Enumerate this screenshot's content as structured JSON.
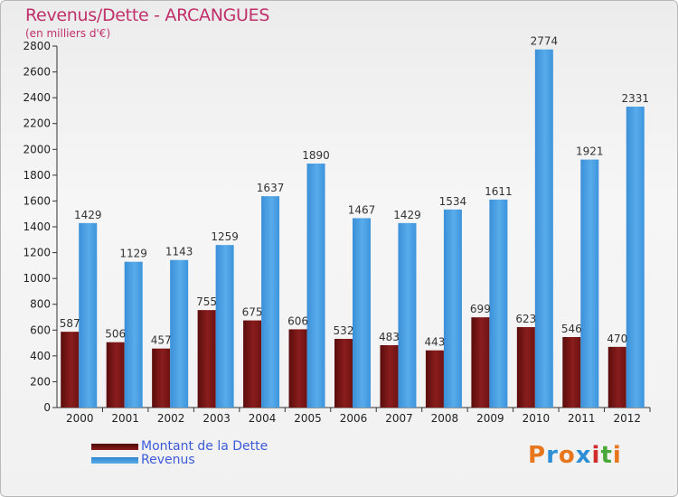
{
  "header": {
    "title": "Revenus/Dette - ARCANGUES",
    "subtitle": "(en milliers d'€)"
  },
  "chart_data": {
    "type": "bar",
    "categories": [
      "2000",
      "2001",
      "2002",
      "2003",
      "2004",
      "2005",
      "2006",
      "2007",
      "2008",
      "2009",
      "2010",
      "2011",
      "2012"
    ],
    "series": [
      {
        "name": "Montant de la Dette",
        "color": "#7a1414",
        "values": [
          587,
          506,
          457,
          755,
          675,
          606,
          532,
          483,
          443,
          699,
          623,
          546,
          470
        ]
      },
      {
        "name": "Revenus",
        "color": "#3f9be0",
        "values": [
          1429,
          1129,
          1143,
          1259,
          1637,
          1890,
          1467,
          1429,
          1534,
          1611,
          2774,
          1921,
          2331
        ]
      }
    ],
    "ylim": [
      0,
      2800
    ],
    "yticks": [
      0,
      200,
      400,
      600,
      800,
      1000,
      1200,
      1400,
      1600,
      1800,
      2000,
      2200,
      2400,
      2600,
      2800
    ],
    "grid": false,
    "legend_position": "bottom-left"
  },
  "legend": {
    "items": [
      {
        "label": "Montant de la Dette",
        "color": "#7a1414"
      },
      {
        "label": "Revenus",
        "color": "#3f9be0"
      }
    ]
  },
  "logo": {
    "text": "Proxiti",
    "letter_colors": [
      "#e8761c",
      "#2f8fd6",
      "#e8761c",
      "#2f8fd6",
      "#d12d2d",
      "#4aa83a",
      "#e8761c"
    ]
  }
}
